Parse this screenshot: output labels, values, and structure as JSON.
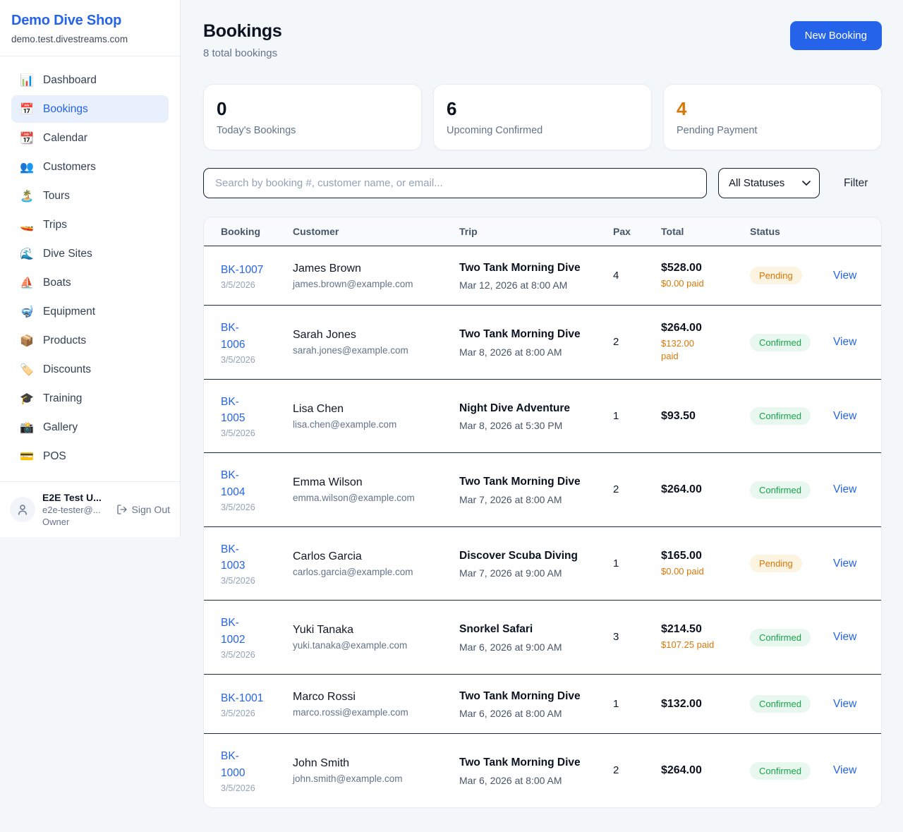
{
  "colors": {
    "accent_blue": "#2563eb",
    "warning_orange": "#d97706",
    "success_green": "#16a34a",
    "pending_badge_bg": "#fdf3e1",
    "confirmed_badge_bg": "#e8f8ee"
  },
  "sidebar": {
    "brand": {
      "name": "Demo Dive Shop",
      "domain": "demo.test.divestreams.com"
    },
    "items": [
      {
        "icon": "📊",
        "icon_name": "bar-chart-icon",
        "label": "Dashboard",
        "active": false
      },
      {
        "icon": "📅",
        "icon_name": "calendar-icon",
        "label": "Bookings",
        "active": true
      },
      {
        "icon": "📆",
        "icon_name": "tear-off-calendar-icon",
        "label": "Calendar",
        "active": false
      },
      {
        "icon": "👥",
        "icon_name": "people-icon",
        "label": "Customers",
        "active": false
      },
      {
        "icon": "🏝️",
        "icon_name": "island-icon",
        "label": "Tours",
        "active": false
      },
      {
        "icon": "🚤",
        "icon_name": "speedboat-icon",
        "label": "Trips",
        "active": false
      },
      {
        "icon": "🌊",
        "icon_name": "wave-icon",
        "label": "Dive Sites",
        "active": false
      },
      {
        "icon": "⛵",
        "icon_name": "sailboat-icon",
        "label": "Boats",
        "active": false
      },
      {
        "icon": "🤿",
        "icon_name": "diving-mask-icon",
        "label": "Equipment",
        "active": false
      },
      {
        "icon": "📦",
        "icon_name": "package-icon",
        "label": "Products",
        "active": false
      },
      {
        "icon": "🏷️",
        "icon_name": "label-tag-icon",
        "label": "Discounts",
        "active": false
      },
      {
        "icon": "🎓",
        "icon_name": "graduation-cap-icon",
        "label": "Training",
        "active": false
      },
      {
        "icon": "📸",
        "icon_name": "camera-flash-icon",
        "label": "Gallery",
        "active": false
      },
      {
        "icon": "💳",
        "icon_name": "credit-card-icon",
        "label": "POS",
        "active": false
      }
    ],
    "user": {
      "name": "E2E Test U...",
      "email": "e2e-tester@...",
      "role": "Owner",
      "sign_out_label": "Sign Out"
    }
  },
  "header": {
    "title": "Bookings",
    "subtitle": "8 total bookings",
    "new_booking_label": "New Booking"
  },
  "stats": [
    {
      "value": "0",
      "label": "Today's Bookings",
      "value_color": "#0b1220"
    },
    {
      "value": "6",
      "label": "Upcoming Confirmed",
      "value_color": "#0b1220"
    },
    {
      "value": "4",
      "label": "Pending Payment",
      "value_color": "#d97706"
    }
  ],
  "controls": {
    "search_placeholder": "Search by booking #, customer name, or email...",
    "status_filter_value": "All Statuses",
    "filter_label": "Filter"
  },
  "table": {
    "columns": [
      "Booking",
      "Customer",
      "Trip",
      "Pax",
      "Total",
      "Status"
    ],
    "view_label": "View",
    "rows": [
      {
        "id": "BK-1007",
        "id_wrap": false,
        "date": "3/5/2026",
        "customer": "James Brown",
        "email": "james.brown@example.com",
        "trip": "Two Tank Morning Dive",
        "trip_datetime": "Mar 12, 2026 at 8:00 AM",
        "pax": "4",
        "total": "$528.00",
        "paid": "$0.00 paid",
        "status": "Pending"
      },
      {
        "id": "BK-1006",
        "id_wrap": true,
        "date": "3/5/2026",
        "customer": "Sarah Jones",
        "email": "sarah.jones@example.com",
        "trip": "Two Tank Morning Dive",
        "trip_datetime": "Mar 8, 2026 at 8:00 AM",
        "pax": "2",
        "total": "$264.00",
        "paid": "$132.00\npaid",
        "status": "Confirmed"
      },
      {
        "id": "BK-1005",
        "id_wrap": true,
        "date": "3/5/2026",
        "customer": "Lisa Chen",
        "email": "lisa.chen@example.com",
        "trip": "Night Dive Adventure",
        "trip_datetime": "Mar 8, 2026 at 5:30 PM",
        "pax": "1",
        "total": "$93.50",
        "paid": "",
        "status": "Confirmed"
      },
      {
        "id": "BK-1004",
        "id_wrap": true,
        "date": "3/5/2026",
        "customer": "Emma Wilson",
        "email": "emma.wilson@example.com",
        "trip": "Two Tank Morning Dive",
        "trip_datetime": "Mar 7, 2026 at 8:00 AM",
        "pax": "2",
        "total": "$264.00",
        "paid": "",
        "status": "Confirmed"
      },
      {
        "id": "BK-1003",
        "id_wrap": true,
        "date": "3/5/2026",
        "customer": "Carlos Garcia",
        "email": "carlos.garcia@example.com",
        "trip": "Discover Scuba Diving",
        "trip_datetime": "Mar 7, 2026 at 9:00 AM",
        "pax": "1",
        "total": "$165.00",
        "paid": "$0.00 paid",
        "status": "Pending"
      },
      {
        "id": "BK-1002",
        "id_wrap": true,
        "date": "3/5/2026",
        "customer": "Yuki Tanaka",
        "email": "yuki.tanaka@example.com",
        "trip": "Snorkel Safari",
        "trip_datetime": "Mar 6, 2026 at 9:00 AM",
        "pax": "3",
        "total": "$214.50",
        "paid": "$107.25 paid",
        "status": "Confirmed"
      },
      {
        "id": "BK-1001",
        "id_wrap": false,
        "date": "3/5/2026",
        "customer": "Marco Rossi",
        "email": "marco.rossi@example.com",
        "trip": "Two Tank Morning Dive",
        "trip_datetime": "Mar 6, 2026 at 8:00 AM",
        "pax": "1",
        "total": "$132.00",
        "paid": "",
        "status": "Confirmed"
      },
      {
        "id": "BK-1000",
        "id_wrap": true,
        "date": "3/5/2026",
        "customer": "John Smith",
        "email": "john.smith@example.com",
        "trip": "Two Tank Morning Dive",
        "trip_datetime": "Mar 6, 2026 at 8:00 AM",
        "pax": "2",
        "total": "$264.00",
        "paid": "",
        "status": "Confirmed"
      }
    ]
  }
}
